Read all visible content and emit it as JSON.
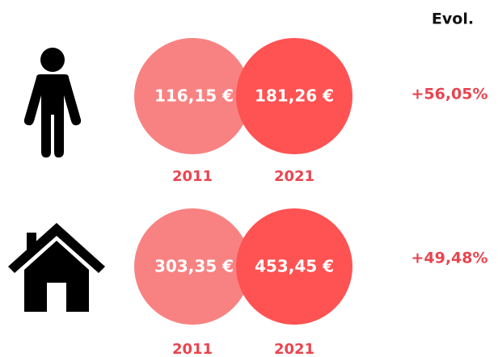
{
  "evol_label": "Evol.",
  "rows": [
    {
      "values": [
        {
          "year": "2011",
          "amount": "116,15 €"
        },
        {
          "year": "2021",
          "amount": "181,26 €"
        }
      ],
      "evolution": "+56,05%"
    },
    {
      "values": [
        {
          "year": "2011",
          "amount": "303,35 €"
        },
        {
          "year": "2021",
          "amount": "453,45 €"
        }
      ],
      "evolution": "+49,48%"
    }
  ]
}
